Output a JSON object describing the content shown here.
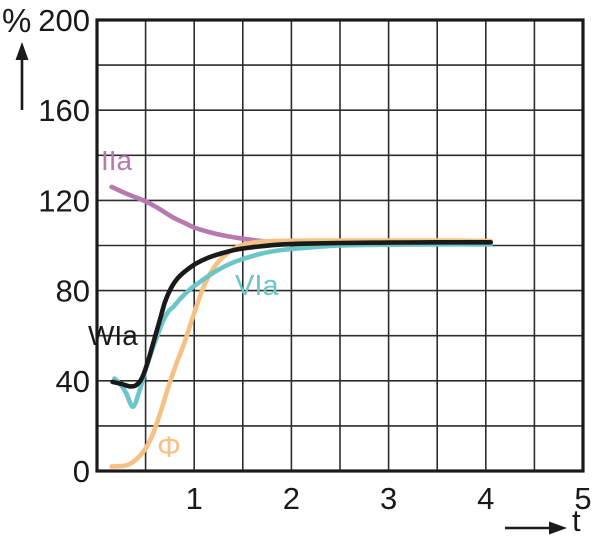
{
  "chart_data": {
    "type": "line",
    "title": "",
    "ylabel": "%",
    "xlabel": "t",
    "xlim": [
      0,
      5
    ],
    "ylim": [
      0,
      200
    ],
    "x_labeled_ticks": [
      "1",
      "2",
      "3",
      "4",
      "5"
    ],
    "x_labeled_tick_values": [
      1,
      2,
      3,
      4,
      5
    ],
    "y_labeled_ticks": [
      "0",
      "40",
      "80",
      "120",
      "160",
      "200"
    ],
    "y_labeled_tick_values": [
      0,
      40,
      80,
      120,
      160,
      200
    ],
    "x_grid_step": 0.5,
    "y_grid_step": 20,
    "grid": "on",
    "legend_position": "inline-labels",
    "frame_color": "#1a1a1a",
    "grid_color": "#2d2d2d",
    "background_color": "#ffffff",
    "series": [
      {
        "name": "IIa",
        "label": "IIa",
        "color": "#b878b0",
        "points": [
          [
            0.15,
            126
          ],
          [
            0.3,
            123
          ],
          [
            0.45,
            120.5
          ],
          [
            0.55,
            118.5
          ],
          [
            0.65,
            116
          ],
          [
            0.78,
            112.5
          ],
          [
            0.9,
            110
          ],
          [
            1.0,
            108
          ],
          [
            1.15,
            106
          ],
          [
            1.3,
            104.5
          ],
          [
            1.5,
            103
          ],
          [
            1.7,
            102
          ],
          [
            1.9,
            101.4
          ],
          [
            2.1,
            101
          ],
          [
            2.5,
            100.8
          ],
          [
            3.0,
            100.8
          ],
          [
            3.5,
            100.8
          ],
          [
            4.05,
            100.8
          ]
        ]
      },
      {
        "name": "Phi",
        "label": "Φ",
        "color": "#f6c185",
        "points": [
          [
            0.15,
            2
          ],
          [
            0.3,
            2.5
          ],
          [
            0.4,
            5
          ],
          [
            0.5,
            10
          ],
          [
            0.58,
            17
          ],
          [
            0.66,
            27
          ],
          [
            0.74,
            38
          ],
          [
            0.82,
            48
          ],
          [
            0.9,
            57
          ],
          [
            1.0,
            70
          ],
          [
            1.1,
            82
          ],
          [
            1.2,
            90
          ],
          [
            1.3,
            95
          ],
          [
            1.45,
            99.5
          ],
          [
            1.6,
            101.3
          ],
          [
            1.8,
            102
          ],
          [
            2.2,
            102.2
          ],
          [
            2.7,
            102.2
          ],
          [
            3.2,
            102.2
          ],
          [
            3.7,
            102.2
          ],
          [
            4.05,
            102
          ]
        ]
      },
      {
        "name": "VIa",
        "label": "VIa",
        "color": "#6cc5c8",
        "points": [
          [
            0.18,
            41
          ],
          [
            0.24,
            38.5
          ],
          [
            0.3,
            34.5
          ],
          [
            0.37,
            28.5
          ],
          [
            0.44,
            36
          ],
          [
            0.5,
            45
          ],
          [
            0.57,
            54
          ],
          [
            0.63,
            61
          ],
          [
            0.68,
            66.5
          ],
          [
            0.73,
            70.5
          ],
          [
            0.79,
            73
          ],
          [
            0.87,
            77
          ],
          [
            0.97,
            81
          ],
          [
            1.08,
            84.5
          ],
          [
            1.2,
            88
          ],
          [
            1.35,
            91.5
          ],
          [
            1.5,
            94
          ],
          [
            1.7,
            96.5
          ],
          [
            1.9,
            98
          ],
          [
            2.15,
            99
          ],
          [
            2.5,
            100
          ],
          [
            2.9,
            100.3
          ],
          [
            3.4,
            100.5
          ],
          [
            4.05,
            100.5
          ]
        ]
      },
      {
        "name": "WIa",
        "label": "WIa",
        "color": "#1a1a1a",
        "points": [
          [
            0.16,
            39.5
          ],
          [
            0.26,
            38.5
          ],
          [
            0.34,
            37.5
          ],
          [
            0.4,
            38
          ],
          [
            0.46,
            41
          ],
          [
            0.52,
            48
          ],
          [
            0.58,
            57
          ],
          [
            0.64,
            66
          ],
          [
            0.7,
            75
          ],
          [
            0.76,
            81
          ],
          [
            0.83,
            85.5
          ],
          [
            0.92,
            89
          ],
          [
            1.02,
            92
          ],
          [
            1.14,
            94.5
          ],
          [
            1.28,
            96.5
          ],
          [
            1.45,
            98.3
          ],
          [
            1.65,
            99.5
          ],
          [
            1.85,
            100.3
          ],
          [
            2.1,
            100.8
          ],
          [
            2.5,
            101.1
          ],
          [
            3.0,
            101.3
          ],
          [
            3.5,
            101.4
          ],
          [
            4.05,
            101.4
          ]
        ]
      }
    ]
  }
}
